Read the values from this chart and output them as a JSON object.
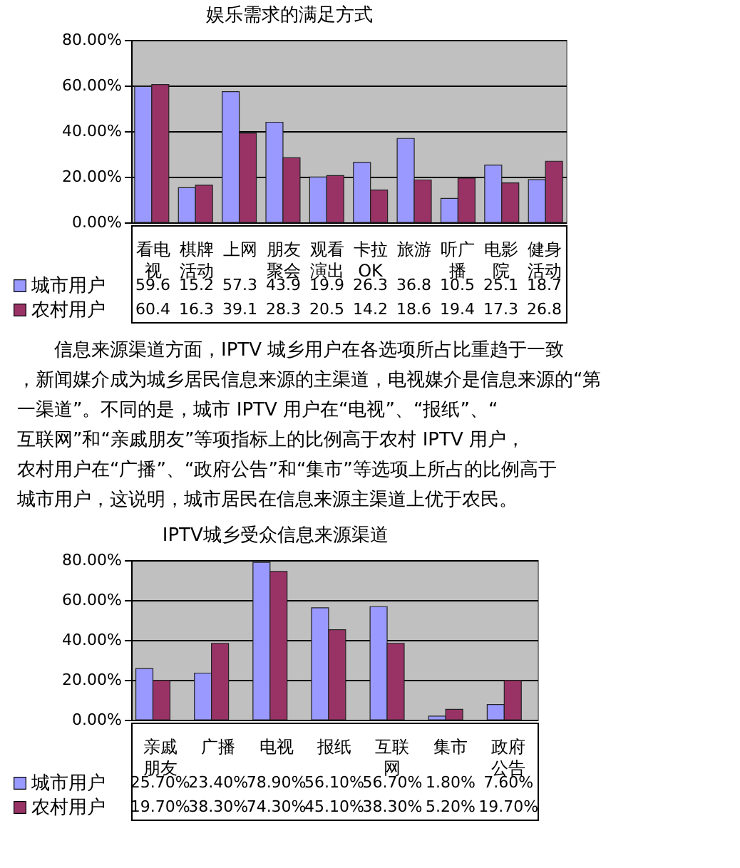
{
  "chart_data": [
    {
      "type": "bar",
      "title": "娱乐需求的满足方式",
      "categories": [
        "看电视",
        "棋牌活动",
        "上网",
        "朋友聚会",
        "观看演出",
        "卡拉OK",
        "旅游",
        "听广播",
        "电影院",
        "健身活动"
      ],
      "series": [
        {
          "name": "城市用户",
          "color": "#9999ff",
          "values": [
            59.6,
            15.2,
            57.3,
            43.9,
            19.9,
            26.3,
            36.8,
            10.5,
            25.1,
            18.7
          ]
        },
        {
          "name": "农村用户",
          "color": "#993366",
          "values": [
            60.4,
            16.3,
            39.1,
            28.3,
            20.5,
            14.2,
            18.6,
            19.4,
            17.3,
            26.8
          ]
        }
      ],
      "ylim": [
        0,
        80
      ],
      "yticks": [
        {
          "value": 0,
          "label": "0.00%"
        },
        {
          "value": 20,
          "label": "20.00%"
        },
        {
          "value": 40,
          "label": "40.00%"
        },
        {
          "value": 60,
          "label": "60.00%"
        },
        {
          "value": 80,
          "label": "80.00%"
        }
      ],
      "grid": "y",
      "legend": "bottom",
      "data_labels": true
    },
    {
      "type": "other",
      "annotations": [
        "信息来源渠道方面，IPTV 城乡用户在各选项所占比重趋于一致，新闻媒介成为城乡居民信息来源的主渠道，电视媒介是信息来源的“第一渠道”。不同的是，城市 IPTV 用户在“电视”、“报纸”、“互联网”和“亲戚朋友”等项指标上的比例高于农村 IPTV 用户，农村用户在“广播”、“政府公告”和“集市”等选项上所占的比例高于城市用户，这说明，城市居民在信息来源主渠道上优于农民。"
      ]
    },
    {
      "type": "bar",
      "title": "IPTV城乡受众信息来源渠道",
      "categories": [
        "亲戚朋友",
        "广播",
        "电视",
        "报纸",
        "互联网",
        "集市",
        "政府公告"
      ],
      "series": [
        {
          "name": "城市用户",
          "color": "#9999ff",
          "values": [
            25.7,
            23.4,
            78.9,
            56.1,
            56.7,
            1.8,
            7.6
          ],
          "value_labels": [
            "25.70%",
            "23.40%",
            "78.90%",
            "56.10%",
            "56.70%",
            "1.80%",
            "7.60%"
          ]
        },
        {
          "name": "农村用户",
          "color": "#993366",
          "values": [
            19.7,
            38.3,
            74.3,
            45.1,
            38.3,
            5.2,
            19.7
          ],
          "value_labels": [
            "19.70%",
            "38.30%",
            "74.30%",
            "45.10%",
            "38.30%",
            "5.20%",
            "19.70%"
          ]
        }
      ],
      "ylim": [
        0,
        80
      ],
      "yticks": [
        {
          "value": 0,
          "label": "0.00%"
        },
        {
          "value": 20,
          "label": "20.00%"
        },
        {
          "value": 40,
          "label": "40.00%"
        },
        {
          "value": 60,
          "label": "60.00%"
        },
        {
          "value": 80,
          "label": "80.00%"
        }
      ],
      "grid": "y",
      "legend": "bottom"
    }
  ]
}
